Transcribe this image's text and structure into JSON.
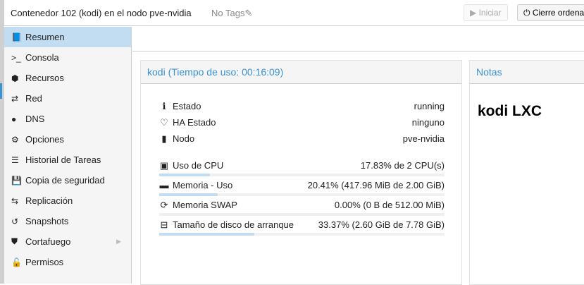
{
  "header": {
    "title": "Contenedor 102 (kodi) en el nodo pve-nvidia",
    "tags": "No Tags",
    "start_label": "Iniciar",
    "shutdown_label": "Cierre ordena"
  },
  "sidebar": {
    "items": [
      {
        "label": "Resumen",
        "icon": "book-icon",
        "glyph": "📘"
      },
      {
        "label": "Consola",
        "icon": "terminal-icon",
        "glyph": ">_"
      },
      {
        "label": "Recursos",
        "icon": "cube-icon",
        "glyph": "⬢"
      },
      {
        "label": "Red",
        "icon": "exchange-icon",
        "glyph": "⇄"
      },
      {
        "label": "DNS",
        "icon": "globe-icon",
        "glyph": "●"
      },
      {
        "label": "Opciones",
        "icon": "gear-icon",
        "glyph": "⚙"
      },
      {
        "label": "Historial de Tareas",
        "icon": "list-icon",
        "glyph": "☰"
      },
      {
        "label": "Copia de seguridad",
        "icon": "floppy-icon",
        "glyph": "💾"
      },
      {
        "label": "Replicación",
        "icon": "retweet-icon",
        "glyph": "⇆"
      },
      {
        "label": "Snapshots",
        "icon": "history-icon",
        "glyph": "↺"
      },
      {
        "label": "Cortafuego",
        "icon": "shield-icon",
        "glyph": "⛊"
      },
      {
        "label": "Permisos",
        "icon": "unlock-icon",
        "glyph": "🔓"
      }
    ]
  },
  "status": {
    "title": "kodi (Tiempo de uso: 00:16:09)",
    "info": [
      {
        "label": "Estado",
        "value": "running",
        "glyph": "ℹ"
      },
      {
        "label": "HA Estado",
        "value": "ninguno",
        "glyph": "♡"
      },
      {
        "label": "Nodo",
        "value": "pve-nvidia",
        "glyph": "▮"
      }
    ],
    "usage": [
      {
        "label": "Uso de CPU",
        "value": "17.83% de 2 CPU(s)",
        "percent": 17.83,
        "glyph": "▣"
      },
      {
        "label": "Memoria - Uso",
        "value": "20.41% (417.96 MiB de 2.00 GiB)",
        "percent": 20.41,
        "glyph": "▬"
      },
      {
        "label": "Memoria SWAP",
        "value": "0.00% (0 B de 512.00 MiB)",
        "percent": 0,
        "glyph": "⟳"
      },
      {
        "label": "Tamaño de disco de arranque",
        "value": "33.37% (2.60 GiB de 7.78 GiB)",
        "percent": 33.37,
        "glyph": "⊟"
      }
    ]
  },
  "notes": {
    "title": "Notas",
    "content": "kodi LXC"
  }
}
